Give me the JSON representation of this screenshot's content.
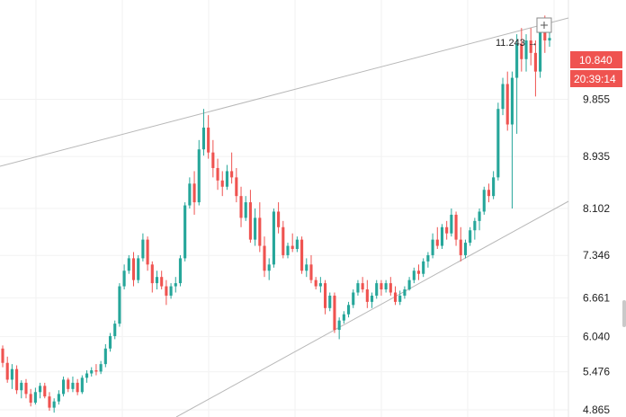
{
  "chart_data": {
    "type": "candlestick",
    "y_axis": {
      "ticks": [
        "4.865",
        "5.476",
        "6.040",
        "6.661",
        "7.346",
        "8.102",
        "8.935",
        "9.855"
      ],
      "range": [
        4.75,
        11.45
      ]
    },
    "last_price": "10.840",
    "countdown": "20:39:14",
    "annotation": "11.243 →",
    "grid": true,
    "candles": [
      [
        5.85,
        5.9,
        5.55,
        5.62
      ],
      [
        5.62,
        5.72,
        5.3,
        5.35
      ],
      [
        5.35,
        5.6,
        5.2,
        5.52
      ],
      [
        5.52,
        5.58,
        5.12,
        5.18
      ],
      [
        5.18,
        5.34,
        5.05,
        5.3
      ],
      [
        5.3,
        5.36,
        5.05,
        5.12
      ],
      [
        5.12,
        5.2,
        4.92,
        4.98
      ],
      [
        4.98,
        5.22,
        4.95,
        5.15
      ],
      [
        5.15,
        5.3,
        5.05,
        5.25
      ],
      [
        5.25,
        5.3,
        5.05,
        5.08
      ],
      [
        5.08,
        5.15,
        4.85,
        4.9
      ],
      [
        4.9,
        5.05,
        4.82,
        5.0
      ],
      [
        5.0,
        5.18,
        4.95,
        5.12
      ],
      [
        5.12,
        5.4,
        5.08,
        5.35
      ],
      [
        5.35,
        5.38,
        5.15,
        5.2
      ],
      [
        5.2,
        5.4,
        5.15,
        5.3
      ],
      [
        5.3,
        5.36,
        5.1,
        5.15
      ],
      [
        5.15,
        5.42,
        5.12,
        5.38
      ],
      [
        5.38,
        5.5,
        5.3,
        5.45
      ],
      [
        5.45,
        5.55,
        5.4,
        5.5
      ],
      [
        5.5,
        5.6,
        5.42,
        5.48
      ],
      [
        5.48,
        5.65,
        5.44,
        5.6
      ],
      [
        5.6,
        5.92,
        5.55,
        5.85
      ],
      [
        5.85,
        6.1,
        5.8,
        6.05
      ],
      [
        6.05,
        6.3,
        6.0,
        6.25
      ],
      [
        6.25,
        6.9,
        6.2,
        6.85
      ],
      [
        6.85,
        7.2,
        6.8,
        7.1
      ],
      [
        7.1,
        7.35,
        7.05,
        7.3
      ],
      [
        7.3,
        7.4,
        6.85,
        6.95
      ],
      [
        6.95,
        7.35,
        6.9,
        7.3
      ],
      [
        7.3,
        7.7,
        7.25,
        7.6
      ],
      [
        7.6,
        7.65,
        7.1,
        7.2
      ],
      [
        7.2,
        7.25,
        6.75,
        6.9
      ],
      [
        6.9,
        7.1,
        6.8,
        7.0
      ],
      [
        7.0,
        7.1,
        6.8,
        6.85
      ],
      [
        6.85,
        6.95,
        6.55,
        6.7
      ],
      [
        6.7,
        6.9,
        6.65,
        6.85
      ],
      [
        6.85,
        7.0,
        6.75,
        6.9
      ],
      [
        6.9,
        7.35,
        6.85,
        7.3
      ],
      [
        7.3,
        8.2,
        7.25,
        8.15
      ],
      [
        8.15,
        8.6,
        8.1,
        8.5
      ],
      [
        8.5,
        8.7,
        8.0,
        8.2
      ],
      [
        8.2,
        9.2,
        8.15,
        9.05
      ],
      [
        9.05,
        9.7,
        8.95,
        9.4
      ],
      [
        9.4,
        9.6,
        8.9,
        9.0
      ],
      [
        9.0,
        9.2,
        8.6,
        8.75
      ],
      [
        8.75,
        8.9,
        8.4,
        8.55
      ],
      [
        8.55,
        8.7,
        8.3,
        8.45
      ],
      [
        8.45,
        8.8,
        8.4,
        8.7
      ],
      [
        8.7,
        9.0,
        8.5,
        8.6
      ],
      [
        8.6,
        8.75,
        8.2,
        8.3
      ],
      [
        8.3,
        8.45,
        7.8,
        7.95
      ],
      [
        7.95,
        8.3,
        7.9,
        8.2
      ],
      [
        8.2,
        8.4,
        7.55,
        7.6
      ],
      [
        7.6,
        8.1,
        7.5,
        7.95
      ],
      [
        7.95,
        8.2,
        7.4,
        7.5
      ],
      [
        7.5,
        7.65,
        7.0,
        7.1
      ],
      [
        7.1,
        7.3,
        6.95,
        7.2
      ],
      [
        7.2,
        8.1,
        7.15,
        8.05
      ],
      [
        8.05,
        8.2,
        7.7,
        7.8
      ],
      [
        7.8,
        7.9,
        7.3,
        7.35
      ],
      [
        7.35,
        7.55,
        7.3,
        7.5
      ],
      [
        7.5,
        7.7,
        7.4,
        7.45
      ],
      [
        7.45,
        7.65,
        7.4,
        7.6
      ],
      [
        7.6,
        7.65,
        7.05,
        7.1
      ],
      [
        7.1,
        7.3,
        7.0,
        7.2
      ],
      [
        7.2,
        7.35,
        6.9,
        6.95
      ],
      [
        6.95,
        7.0,
        6.8,
        6.85
      ],
      [
        6.85,
        7.0,
        6.75,
        6.9
      ],
      [
        6.9,
        6.95,
        6.4,
        6.5
      ],
      [
        6.5,
        6.75,
        6.45,
        6.7
      ],
      [
        6.7,
        6.75,
        6.1,
        6.15
      ],
      [
        6.15,
        6.35,
        6.0,
        6.3
      ],
      [
        6.3,
        6.45,
        6.25,
        6.4
      ],
      [
        6.4,
        6.6,
        6.35,
        6.55
      ],
      [
        6.55,
        6.8,
        6.5,
        6.75
      ],
      [
        6.75,
        6.95,
        6.7,
        6.9
      ],
      [
        6.9,
        7.0,
        6.75,
        6.8
      ],
      [
        6.8,
        6.95,
        6.5,
        6.6
      ],
      [
        6.6,
        6.75,
        6.5,
        6.7
      ],
      [
        6.7,
        6.95,
        6.65,
        6.9
      ],
      [
        6.9,
        6.95,
        6.7,
        6.8
      ],
      [
        6.8,
        6.95,
        6.75,
        6.9
      ],
      [
        6.9,
        7.0,
        6.7,
        6.75
      ],
      [
        6.75,
        6.85,
        6.55,
        6.6
      ],
      [
        6.6,
        6.78,
        6.55,
        6.7
      ],
      [
        6.7,
        6.85,
        6.65,
        6.8
      ],
      [
        6.8,
        7.0,
        6.78,
        6.95
      ],
      [
        6.95,
        7.15,
        6.9,
        7.1
      ],
      [
        7.1,
        7.2,
        6.95,
        7.05
      ],
      [
        7.05,
        7.3,
        7.0,
        7.25
      ],
      [
        7.25,
        7.4,
        7.15,
        7.35
      ],
      [
        7.35,
        7.7,
        7.3,
        7.6
      ],
      [
        7.6,
        7.8,
        7.45,
        7.5
      ],
      [
        7.5,
        7.85,
        7.45,
        7.8
      ],
      [
        7.8,
        7.9,
        7.6,
        7.7
      ],
      [
        7.7,
        8.1,
        7.65,
        8.0
      ],
      [
        8.0,
        8.05,
        7.5,
        7.6
      ],
      [
        7.6,
        7.8,
        7.25,
        7.35
      ],
      [
        7.35,
        7.6,
        7.3,
        7.55
      ],
      [
        7.55,
        7.8,
        7.5,
        7.75
      ],
      [
        7.75,
        7.95,
        7.6,
        7.9
      ],
      [
        7.9,
        8.1,
        7.75,
        8.05
      ],
      [
        8.05,
        8.45,
        8.0,
        8.4
      ],
      [
        8.4,
        8.5,
        8.2,
        8.3
      ],
      [
        8.3,
        8.7,
        8.25,
        8.6
      ],
      [
        8.6,
        9.8,
        8.55,
        9.7
      ],
      [
        9.7,
        10.2,
        9.6,
        10.1
      ],
      [
        10.1,
        10.3,
        9.35,
        9.45
      ],
      [
        9.45,
        10.3,
        8.1,
        10.2
      ],
      [
        10.2,
        10.9,
        9.3,
        10.75
      ],
      [
        10.75,
        11.0,
        10.3,
        10.5
      ],
      [
        10.5,
        10.9,
        10.3,
        10.8
      ],
      [
        10.8,
        11.0,
        10.4,
        10.6
      ],
      [
        10.6,
        10.8,
        9.9,
        10.3
      ],
      [
        10.3,
        11.15,
        10.2,
        11.05
      ],
      [
        11.05,
        11.2,
        10.6,
        10.8
      ],
      [
        10.8,
        10.95,
        10.7,
        10.84
      ]
    ],
    "colors": {
      "up": "#26a69a",
      "down": "#ef5350",
      "badge": "#ef5350",
      "trendline": "#b8b8b8",
      "grid": "#f2f2f2"
    }
  }
}
